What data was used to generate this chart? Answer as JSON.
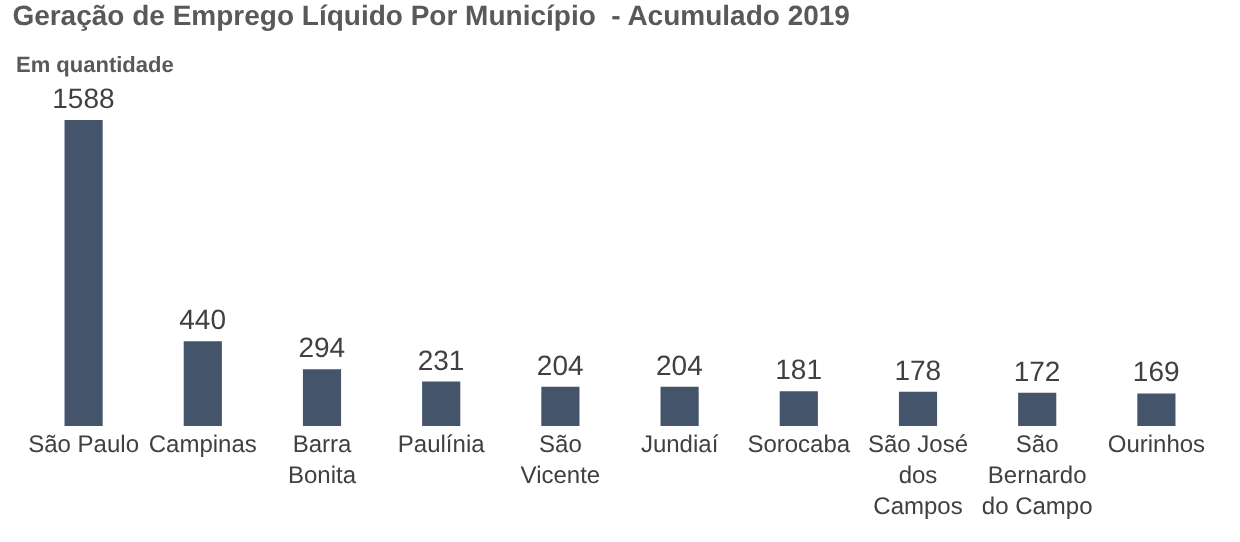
{
  "chart_data": {
    "type": "bar",
    "title": "Geração de Emprego Líquido Por Município  - Acumulado 2019",
    "subtitle": "Em quantidade",
    "categories": [
      "São Paulo",
      "Campinas",
      "Barra Bonita",
      "Paulínia",
      "São Vicente",
      "Jundiaí",
      "Sorocaba",
      "São José dos Campos",
      "São Bernardo do Campo",
      "Ourinhos"
    ],
    "values": [
      1588,
      440,
      294,
      231,
      204,
      204,
      181,
      178,
      172,
      169
    ],
    "color": "#44546a",
    "data_labels": true,
    "legend": false
  }
}
